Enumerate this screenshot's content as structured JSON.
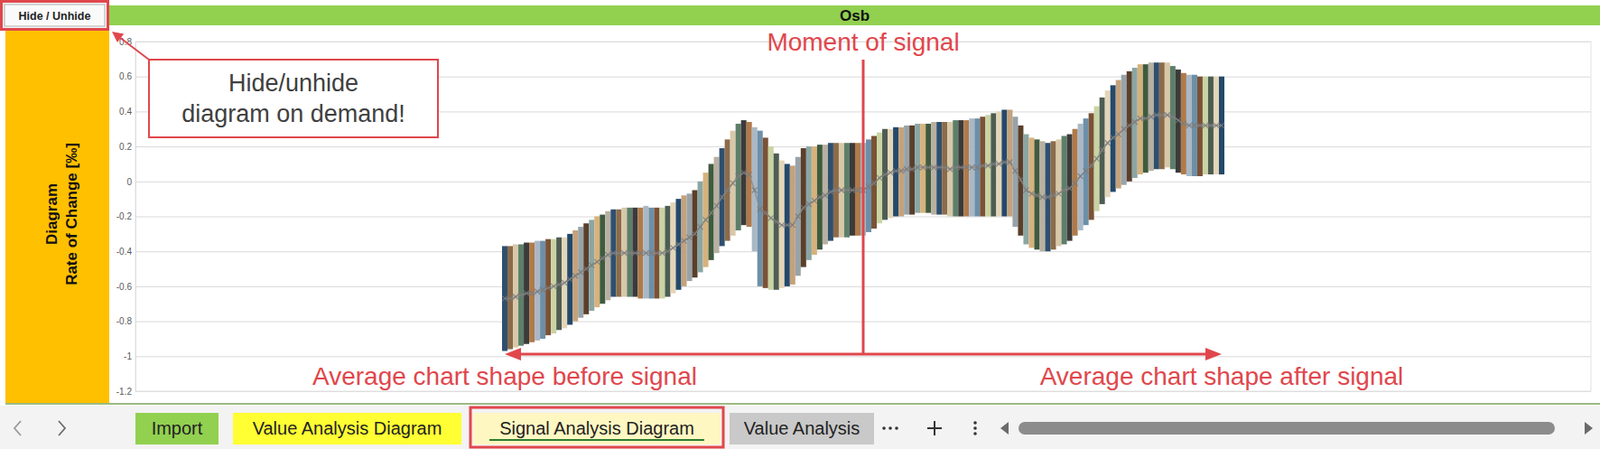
{
  "chart_data": {
    "type": "range_bar",
    "title": "Osb",
    "y_label": [
      "Diagram",
      "Rate of Change [‰]"
    ],
    "annotations": [
      {
        "text": "Moment of signal",
        "x": 0
      },
      {
        "text": "Average chart shape before signal",
        "x": -66
      },
      {
        "text": "Average chart shape after signal",
        "x": 66
      }
    ],
    "x": [
      -66,
      -65,
      -64,
      -63,
      -62,
      -61,
      -60,
      -59,
      -58,
      -57,
      -56,
      -55,
      -54,
      -53,
      -52,
      -51,
      -50,
      -49,
      -48,
      -47,
      -46,
      -45,
      -44,
      -43,
      -42,
      -41,
      -40,
      -39,
      -38,
      -37,
      -36,
      -35,
      -34,
      -33,
      -32,
      -31,
      -30,
      -29,
      -28,
      -27,
      -26,
      -25,
      -24,
      -23,
      -22,
      -21,
      -20,
      -19,
      -18,
      -17,
      -16,
      -15,
      -14,
      -13,
      -12,
      -11,
      -10,
      -9,
      -8,
      -7,
      -6,
      -5,
      -4,
      -3,
      -2,
      -1,
      0,
      1,
      2,
      3,
      4,
      5,
      6,
      7,
      8,
      9,
      10,
      11,
      12,
      13,
      14,
      15,
      16,
      17,
      18,
      19,
      20,
      21,
      22,
      23,
      24,
      25,
      26,
      27,
      28,
      29,
      30,
      31,
      32,
      33,
      34,
      35,
      36,
      37,
      38,
      39,
      40,
      41,
      42,
      43,
      44,
      45,
      46,
      47,
      48,
      49,
      50,
      51,
      52,
      53,
      54,
      55,
      56,
      57,
      58,
      59,
      60,
      61,
      62,
      63,
      64,
      65,
      66
    ],
    "high": [
      -0.37,
      -0.37,
      -0.36,
      -0.36,
      -0.35,
      -0.35,
      -0.34,
      -0.34,
      -0.33,
      -0.33,
      -0.32,
      -0.32,
      -0.3,
      -0.28,
      -0.26,
      -0.24,
      -0.22,
      -0.2,
      -0.19,
      -0.17,
      -0.16,
      -0.16,
      -0.15,
      -0.15,
      -0.15,
      -0.15,
      -0.14,
      -0.15,
      -0.15,
      -0.15,
      -0.14,
      -0.12,
      -0.1,
      -0.08,
      -0.07,
      -0.05,
      0.0,
      0.05,
      0.1,
      0.14,
      0.19,
      0.24,
      0.29,
      0.33,
      0.35,
      0.34,
      0.31,
      0.29,
      0.25,
      0.2,
      0.16,
      0.12,
      0.1,
      0.09,
      0.14,
      0.19,
      0.2,
      0.2,
      0.21,
      0.21,
      0.22,
      0.22,
      0.22,
      0.22,
      0.22,
      0.22,
      0.22,
      0.24,
      0.26,
      0.28,
      0.3,
      0.3,
      0.31,
      0.31,
      0.32,
      0.32,
      0.33,
      0.33,
      0.33,
      0.34,
      0.34,
      0.34,
      0.34,
      0.35,
      0.35,
      0.35,
      0.36,
      0.36,
      0.37,
      0.38,
      0.39,
      0.4,
      0.41,
      0.41,
      0.37,
      0.32,
      0.27,
      0.25,
      0.24,
      0.23,
      0.22,
      0.23,
      0.24,
      0.26,
      0.27,
      0.3,
      0.33,
      0.36,
      0.39,
      0.43,
      0.48,
      0.52,
      0.55,
      0.58,
      0.61,
      0.63,
      0.65,
      0.67,
      0.67,
      0.68,
      0.68,
      0.68,
      0.68,
      0.66,
      0.64,
      0.62,
      0.61,
      0.61,
      0.6,
      0.6,
      0.6,
      0.6,
      0.6
    ],
    "low": [
      -0.97,
      -0.96,
      -0.95,
      -0.94,
      -0.93,
      -0.92,
      -0.91,
      -0.9,
      -0.88,
      -0.87,
      -0.85,
      -0.84,
      -0.82,
      -0.8,
      -0.78,
      -0.76,
      -0.74,
      -0.72,
      -0.7,
      -0.68,
      -0.66,
      -0.66,
      -0.66,
      -0.66,
      -0.66,
      -0.67,
      -0.67,
      -0.67,
      -0.67,
      -0.67,
      -0.66,
      -0.64,
      -0.62,
      -0.6,
      -0.57,
      -0.55,
      -0.52,
      -0.49,
      -0.45,
      -0.41,
      -0.37,
      -0.34,
      -0.31,
      -0.28,
      -0.25,
      -0.26,
      -0.4,
      -0.6,
      -0.61,
      -0.62,
      -0.62,
      -0.61,
      -0.6,
      -0.59,
      -0.54,
      -0.49,
      -0.45,
      -0.42,
      -0.39,
      -0.36,
      -0.34,
      -0.32,
      -0.32,
      -0.32,
      -0.31,
      -0.31,
      -0.31,
      -0.29,
      -0.27,
      -0.24,
      -0.22,
      -0.21,
      -0.2,
      -0.2,
      -0.19,
      -0.19,
      -0.18,
      -0.18,
      -0.18,
      -0.19,
      -0.19,
      -0.19,
      -0.2,
      -0.2,
      -0.2,
      -0.2,
      -0.2,
      -0.2,
      -0.2,
      -0.2,
      -0.2,
      -0.2,
      -0.2,
      -0.2,
      -0.26,
      -0.31,
      -0.36,
      -0.38,
      -0.39,
      -0.4,
      -0.4,
      -0.39,
      -0.37,
      -0.36,
      -0.34,
      -0.31,
      -0.28,
      -0.25,
      -0.22,
      -0.17,
      -0.13,
      -0.09,
      -0.06,
      -0.04,
      -0.02,
      0.0,
      0.02,
      0.04,
      0.05,
      0.06,
      0.07,
      0.07,
      0.08,
      0.07,
      0.05,
      0.04,
      0.03,
      0.03,
      0.03,
      0.04,
      0.04,
      0.04,
      0.04
    ],
    "average": [
      -0.67,
      -0.67,
      -0.66,
      -0.65,
      -0.64,
      -0.64,
      -0.63,
      -0.62,
      -0.61,
      -0.6,
      -0.59,
      -0.58,
      -0.56,
      -0.54,
      -0.52,
      -0.5,
      -0.48,
      -0.46,
      -0.44,
      -0.42,
      -0.41,
      -0.41,
      -0.41,
      -0.41,
      -0.41,
      -0.41,
      -0.41,
      -0.41,
      -0.41,
      -0.41,
      -0.4,
      -0.38,
      -0.36,
      -0.34,
      -0.32,
      -0.3,
      -0.26,
      -0.22,
      -0.18,
      -0.14,
      -0.09,
      -0.05,
      -0.01,
      0.03,
      0.05,
      0.04,
      -0.05,
      -0.16,
      -0.18,
      -0.21,
      -0.23,
      -0.25,
      -0.25,
      -0.25,
      -0.2,
      -0.15,
      -0.13,
      -0.11,
      -0.09,
      -0.08,
      -0.06,
      -0.05,
      -0.05,
      -0.05,
      -0.05,
      -0.05,
      -0.05,
      -0.03,
      -0.01,
      0.02,
      0.04,
      0.05,
      0.06,
      0.06,
      0.07,
      0.07,
      0.08,
      0.08,
      0.08,
      0.08,
      0.08,
      0.08,
      0.07,
      0.08,
      0.08,
      0.08,
      0.08,
      0.08,
      0.09,
      0.09,
      0.1,
      0.1,
      0.11,
      0.11,
      0.06,
      0.01,
      -0.05,
      -0.07,
      -0.08,
      -0.09,
      -0.09,
      -0.08,
      -0.07,
      -0.05,
      -0.04,
      -0.01,
      0.03,
      0.06,
      0.09,
      0.13,
      0.18,
      0.22,
      0.25,
      0.27,
      0.3,
      0.32,
      0.34,
      0.36,
      0.36,
      0.37,
      0.38,
      0.38,
      0.38,
      0.37,
      0.35,
      0.33,
      0.32,
      0.32,
      0.32,
      0.32,
      0.32,
      0.32,
      0.32
    ],
    "colors": [
      "#2f4f6f",
      "#8b6b4a",
      "#d8c8a8",
      "#5d7f6a",
      "#3b3b3b",
      "#b07a4a",
      "#a9b8c4",
      "#6d8fa8",
      "#7a5236",
      "#c9d3a3",
      "#4e5d52",
      "#e3d5b8",
      "#24496b",
      "#c4a27c",
      "#98a3a8",
      "#5a3f2b",
      "#8aa6a3",
      "#d6b27c",
      "#3f5b3f",
      "#b8b0a0",
      "#2f4f6f",
      "#8b6b4a",
      "#d8c8a8",
      "#5d7f6a",
      "#3b3b3b",
      "#b07a4a",
      "#a9b8c4",
      "#6d8fa8",
      "#7a5236",
      "#c9d3a3",
      "#4e5d52",
      "#e3d5b8",
      "#24496b",
      "#c4a27c",
      "#98a3a8",
      "#5a3f2b",
      "#8aa6a3",
      "#d6b27c",
      "#3f5b3f",
      "#b8b0a0",
      "#2f4f6f",
      "#8b6b4a",
      "#d8c8a8",
      "#5d7f6a",
      "#3b3b3b",
      "#b07a4a",
      "#a9b8c4",
      "#6d8fa8",
      "#7a5236",
      "#c9d3a3",
      "#4e5d52",
      "#e3d5b8",
      "#24496b",
      "#c4a27c",
      "#98a3a8",
      "#5a3f2b",
      "#8aa6a3",
      "#d6b27c",
      "#3f5b3f",
      "#b8b0a0",
      "#2f4f6f",
      "#8b6b4a",
      "#d8c8a8",
      "#5d7f6a",
      "#3b3b3b",
      "#b07a4a",
      "#a9b8c4",
      "#6d8fa8",
      "#7a5236",
      "#c9d3a3",
      "#4e5d52",
      "#e3d5b8",
      "#24496b",
      "#c4a27c",
      "#98a3a8",
      "#5a3f2b",
      "#8aa6a3",
      "#d6b27c",
      "#3f5b3f",
      "#b8b0a0",
      "#2f4f6f",
      "#8b6b4a",
      "#d8c8a8",
      "#5d7f6a",
      "#3b3b3b",
      "#b07a4a",
      "#a9b8c4",
      "#6d8fa8",
      "#7a5236",
      "#c9d3a3",
      "#4e5d52",
      "#e3d5b8",
      "#24496b",
      "#c4a27c",
      "#98a3a8",
      "#5a3f2b",
      "#8aa6a3",
      "#d6b27c",
      "#3f5b3f",
      "#b8b0a0",
      "#2f4f6f",
      "#8b6b4a",
      "#d8c8a8",
      "#5d7f6a",
      "#3b3b3b",
      "#b07a4a",
      "#a9b8c4",
      "#6d8fa8",
      "#7a5236",
      "#c9d3a3",
      "#4e5d52",
      "#e3d5b8",
      "#24496b",
      "#c4a27c",
      "#98a3a8",
      "#5a3f2b",
      "#8aa6a3",
      "#d6b27c",
      "#3f5b3f",
      "#b8b0a0",
      "#2f4f6f",
      "#8b6b4a",
      "#d8c8a8",
      "#5d7f6a",
      "#3b3b3b",
      "#b07a4a",
      "#a9b8c4",
      "#6d8fa8",
      "#7a5236",
      "#c9d3a3",
      "#4e5d52",
      "#e3d5b8",
      "#24496b"
    ],
    "marker": "x",
    "xlim": [
      -134,
      134
    ],
    "ylim": [
      -1.2,
      0.8
    ],
    "yticks": [
      -1.2,
      -1,
      -0.8,
      -0.6,
      -0.4,
      -0.2,
      0,
      0.2,
      0.4,
      0.6,
      0.8
    ],
    "grid": true,
    "tick_labels": "y"
  },
  "sheet": {
    "button": "Hide / Unhide",
    "callout": [
      "Hide/unhide",
      "diagram on demand!"
    ],
    "tabs": [
      "Import",
      "Value Analysis Diagram",
      "Signal Analysis Diagram",
      "Value Analysis"
    ]
  }
}
